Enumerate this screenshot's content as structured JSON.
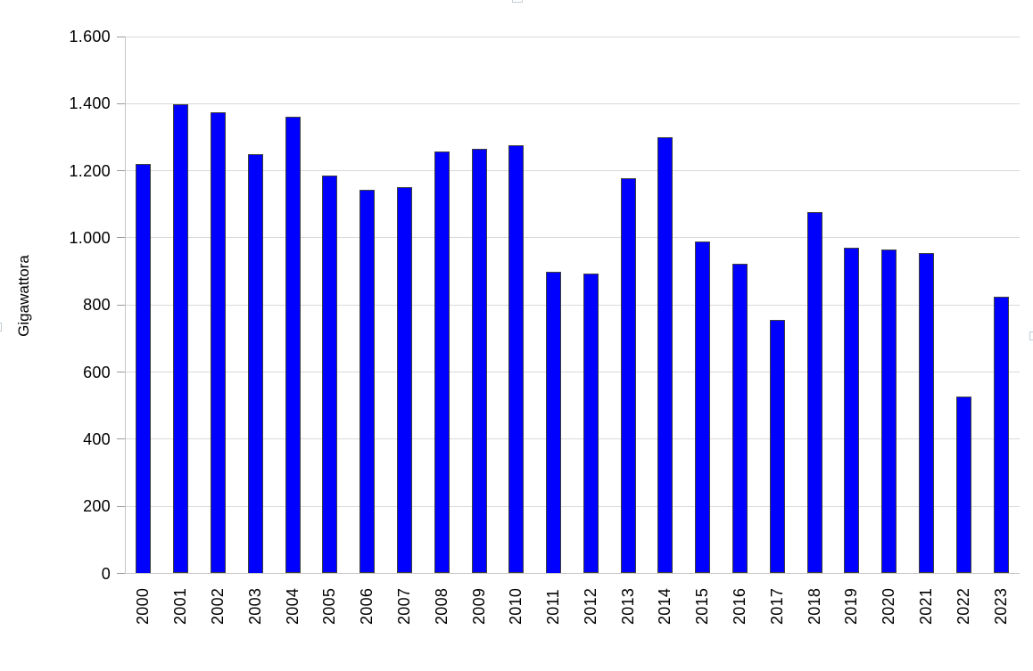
{
  "chart_data": {
    "type": "bar",
    "title": "",
    "xlabel": "",
    "ylabel": "Gigawattora",
    "categories": [
      "2000",
      "2001",
      "2002",
      "2003",
      "2004",
      "2005",
      "2006",
      "2007",
      "2008",
      "2009",
      "2010",
      "2011",
      "2012",
      "2013",
      "2014",
      "2015",
      "2016",
      "2017",
      "2018",
      "2019",
      "2020",
      "2021",
      "2022",
      "2023"
    ],
    "values": [
      1220,
      1397,
      1375,
      1250,
      1362,
      1185,
      1143,
      1152,
      1258,
      1265,
      1277,
      900,
      893,
      1177,
      1301,
      989,
      924,
      755,
      1077,
      971,
      964,
      955,
      528,
      824
    ],
    "ylim": [
      0,
      1600
    ],
    "y_tick_step": 200,
    "y_tick_labels": [
      "0",
      "200",
      "400",
      "600",
      "800",
      "1.000",
      "1.200",
      "1.400",
      "1.600"
    ],
    "grid": "horizontal-only",
    "legend": "none",
    "colors": {
      "bar_fill": "#0000ff",
      "bar_border": "#3f3f3f",
      "gridline": "#d9d9d9",
      "axis_line": "#c6c6c6",
      "tick": "#9a9a9a",
      "text": "#000000",
      "background": "#ffffff"
    }
  },
  "artifacts": {
    "selection_handles": [
      "top-center",
      "left-middle",
      "right-middle"
    ]
  }
}
